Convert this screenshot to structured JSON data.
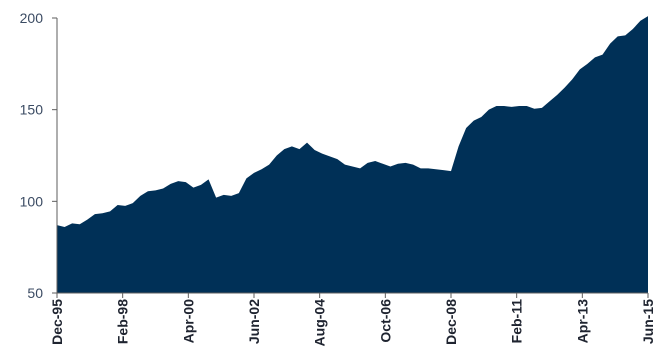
{
  "chart_data": {
    "type": "area",
    "title": "",
    "xlabel": "",
    "ylabel": "",
    "ylim": [
      50,
      200
    ],
    "y_ticks": [
      50,
      100,
      150,
      200
    ],
    "x_tick_labels": [
      "Dec-95",
      "Feb-98",
      "Apr-00",
      "Jun-02",
      "Aug-04",
      "Oct-06",
      "Dec-08",
      "Feb-11",
      "Apr-13",
      "Jun-15"
    ],
    "grid": false,
    "legend": "none",
    "fill_color": "#003057",
    "series": [
      {
        "values": [
          87,
          86,
          88,
          87.5,
          90,
          93,
          93.5,
          94.5,
          98,
          97.5,
          99,
          103,
          105.5,
          106,
          107,
          109.5,
          111,
          110.5,
          107.5,
          109,
          112,
          102,
          103.5,
          103,
          104.5,
          112.5,
          115.5,
          117.5,
          120,
          125,
          128.5,
          130,
          128.5,
          132,
          128,
          126,
          124.5,
          123,
          120,
          119,
          118,
          121,
          122,
          120.5,
          119,
          120.5,
          121,
          120,
          118,
          118,
          117.5,
          117,
          116.5,
          130,
          140,
          144,
          146,
          150,
          152,
          152,
          151.5,
          152,
          152,
          150.5,
          151,
          154.5,
          158,
          162,
          166.5,
          172,
          175,
          178.5,
          180,
          186,
          190,
          190.5,
          194,
          198.5,
          201
        ]
      }
    ]
  }
}
